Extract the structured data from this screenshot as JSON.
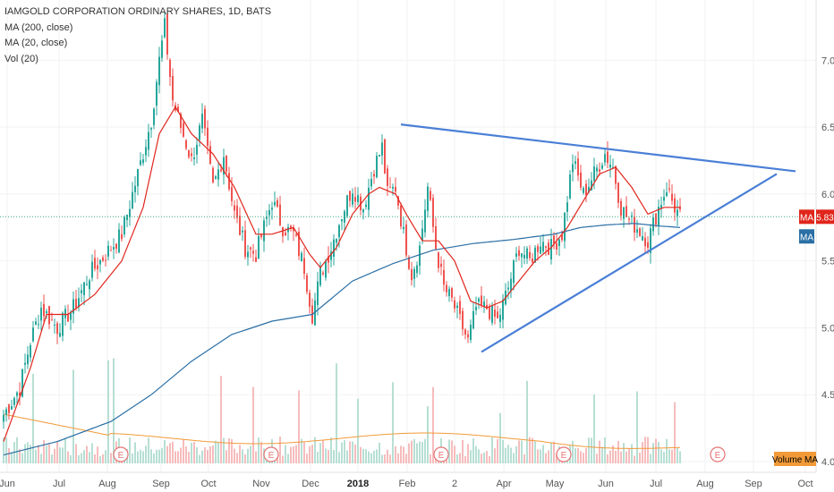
{
  "legend": {
    "title": "IAMGOLD CORPORATION ORDINARY SHARES, 1D, BATS",
    "ma200": "MA (200, close)",
    "ma20": "MA (20, close)",
    "vol": "Vol (20)"
  },
  "price_label": {
    "value": "5.83",
    "color": "#e0261c"
  },
  "ma_tag": {
    "text": "MA",
    "color_red": "#e0261c",
    "color_blue": "#2a6fa5"
  },
  "volume_ma_tag": {
    "text": "Volume MA",
    "color": "#f29a38"
  },
  "earnings_marker": "E",
  "colors": {
    "up": "#26a69a",
    "down": "#ef5350",
    "vol_up": "#b7dfd4",
    "vol_down": "#f6bcbc",
    "ma200": "#2a6fa5",
    "ma20": "#e0261c",
    "vol_ma": "#f29a38",
    "trendline": "#4a7fd6",
    "price_line": "#3aa67a"
  },
  "chart_data": {
    "type": "candlestick",
    "y_ticks": [
      "7.00",
      "6.50",
      "6.00",
      "5.50",
      "5.00",
      "4.50",
      "4.00"
    ],
    "ylim": [
      3.92,
      7.45
    ],
    "x_ticks": [
      {
        "label": "Jun",
        "bold": false
      },
      {
        "label": "Jul",
        "bold": false
      },
      {
        "label": "Aug",
        "bold": false
      },
      {
        "label": "Sep",
        "bold": false
      },
      {
        "label": "Oct",
        "bold": false
      },
      {
        "label": "Nov",
        "bold": false
      },
      {
        "label": "Dec",
        "bold": false
      },
      {
        "label": "2018",
        "bold": true
      },
      {
        "label": "Feb",
        "bold": false
      },
      {
        "label": "2",
        "bold": false
      },
      {
        "label": "Apr",
        "bold": false
      },
      {
        "label": "May",
        "bold": false
      },
      {
        "label": "Jun",
        "bold": false
      },
      {
        "label": "Jul",
        "bold": false
      },
      {
        "label": "Aug",
        "bold": false
      },
      {
        "label": "Sep",
        "bold": false
      },
      {
        "label": "Oct",
        "bold": false
      }
    ],
    "last_price": 5.83,
    "close_keypoints": [
      [
        0,
        4.35
      ],
      [
        6,
        4.55
      ],
      [
        10,
        4.9
      ],
      [
        14,
        5.15
      ],
      [
        20,
        5.0
      ],
      [
        26,
        5.15
      ],
      [
        32,
        5.4
      ],
      [
        38,
        5.55
      ],
      [
        44,
        5.7
      ],
      [
        50,
        6.15
      ],
      [
        55,
        6.55
      ],
      [
        58,
        7.0
      ],
      [
        60,
        7.25
      ],
      [
        63,
        6.7
      ],
      [
        66,
        6.5
      ],
      [
        70,
        6.25
      ],
      [
        74,
        6.55
      ],
      [
        78,
        6.05
      ],
      [
        82,
        6.3
      ],
      [
        86,
        5.85
      ],
      [
        90,
        5.6
      ],
      [
        94,
        5.55
      ],
      [
        97,
        5.75
      ],
      [
        100,
        5.95
      ],
      [
        104,
        5.75
      ],
      [
        108,
        5.7
      ],
      [
        112,
        5.45
      ],
      [
        115,
        5.1
      ],
      [
        118,
        5.4
      ],
      [
        122,
        5.6
      ],
      [
        126,
        5.85
      ],
      [
        130,
        6.05
      ],
      [
        134,
        5.9
      ],
      [
        138,
        6.2
      ],
      [
        141,
        6.35
      ],
      [
        143,
        6.0
      ],
      [
        146,
        6.05
      ],
      [
        149,
        5.7
      ],
      [
        152,
        5.4
      ],
      [
        155,
        5.6
      ],
      [
        158,
        6.05
      ],
      [
        161,
        5.6
      ],
      [
        164,
        5.3
      ],
      [
        167,
        5.2
      ],
      [
        170,
        5.05
      ],
      [
        173,
        4.9
      ],
      [
        176,
        5.15
      ],
      [
        180,
        5.15
      ],
      [
        184,
        5.05
      ],
      [
        188,
        5.3
      ],
      [
        192,
        5.6
      ],
      [
        196,
        5.5
      ],
      [
        200,
        5.65
      ],
      [
        204,
        5.6
      ],
      [
        208,
        5.7
      ],
      [
        212,
        6.25
      ],
      [
        216,
        6.0
      ],
      [
        220,
        6.15
      ],
      [
        224,
        6.3
      ],
      [
        227,
        6.2
      ],
      [
        230,
        5.9
      ],
      [
        233,
        5.8
      ],
      [
        236,
        5.75
      ],
      [
        240,
        5.65
      ],
      [
        244,
        5.9
      ],
      [
        247,
        6.05
      ],
      [
        250,
        5.9
      ],
      [
        252,
        5.83
      ]
    ],
    "ma20_keypoints": [
      [
        0,
        4.15
      ],
      [
        10,
        4.7
      ],
      [
        16,
        5.1
      ],
      [
        24,
        5.1
      ],
      [
        34,
        5.25
      ],
      [
        44,
        5.5
      ],
      [
        52,
        5.9
      ],
      [
        58,
        6.45
      ],
      [
        64,
        6.65
      ],
      [
        70,
        6.45
      ],
      [
        78,
        6.3
      ],
      [
        86,
        6.05
      ],
      [
        94,
        5.7
      ],
      [
        100,
        5.7
      ],
      [
        108,
        5.75
      ],
      [
        114,
        5.55
      ],
      [
        118,
        5.45
      ],
      [
        124,
        5.6
      ],
      [
        130,
        5.85
      ],
      [
        136,
        6.0
      ],
      [
        140,
        6.05
      ],
      [
        146,
        6.0
      ],
      [
        150,
        5.85
      ],
      [
        156,
        5.65
      ],
      [
        162,
        5.65
      ],
      [
        168,
        5.5
      ],
      [
        174,
        5.2
      ],
      [
        180,
        5.15
      ],
      [
        186,
        5.2
      ],
      [
        192,
        5.35
      ],
      [
        198,
        5.5
      ],
      [
        204,
        5.6
      ],
      [
        210,
        5.75
      ],
      [
        216,
        5.95
      ],
      [
        222,
        6.15
      ],
      [
        228,
        6.2
      ],
      [
        234,
        6.05
      ],
      [
        240,
        5.85
      ],
      [
        246,
        5.9
      ],
      [
        252,
        5.9
      ]
    ],
    "ma200_keypoints": [
      [
        0,
        4.05
      ],
      [
        20,
        4.15
      ],
      [
        40,
        4.3
      ],
      [
        55,
        4.5
      ],
      [
        70,
        4.75
      ],
      [
        85,
        4.95
      ],
      [
        100,
        5.05
      ],
      [
        115,
        5.1
      ],
      [
        130,
        5.35
      ],
      [
        145,
        5.48
      ],
      [
        160,
        5.58
      ],
      [
        175,
        5.63
      ],
      [
        190,
        5.66
      ],
      [
        205,
        5.7
      ],
      [
        215,
        5.75
      ],
      [
        225,
        5.77
      ],
      [
        235,
        5.78
      ],
      [
        245,
        5.76
      ],
      [
        252,
        5.75
      ]
    ],
    "trendlines": [
      {
        "from": [
          148,
          6.52
        ],
        "to": [
          295,
          6.17
        ]
      },
      {
        "from": [
          178,
          4.82
        ],
        "to": [
          288,
          6.15
        ]
      }
    ],
    "bar_count": 253
  }
}
